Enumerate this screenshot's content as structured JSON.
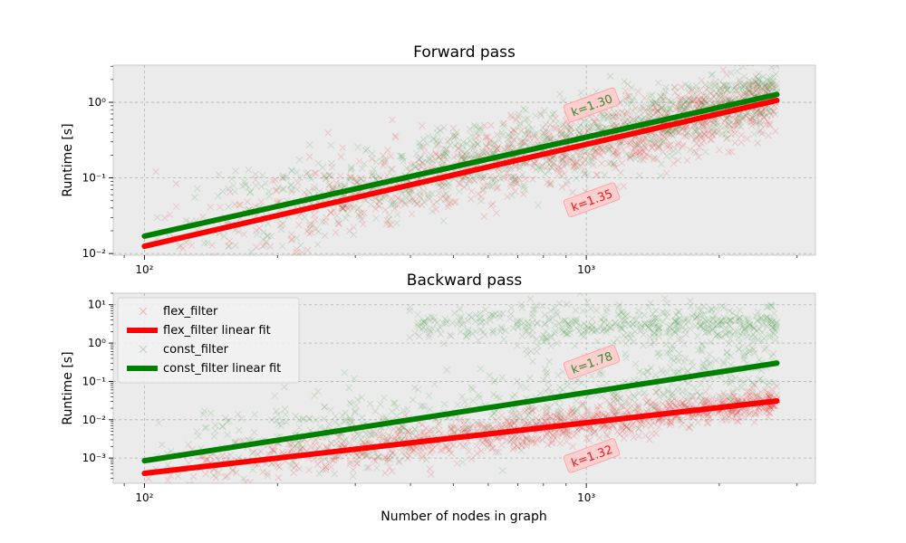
{
  "figure": {
    "xlabel": "Number of nodes in graph"
  },
  "chart_data": [
    {
      "type": "scatter",
      "title": "Forward pass",
      "xlabel": "",
      "ylabel": "Runtime [s]",
      "xscale": "log",
      "yscale": "log",
      "xlim": [
        85,
        3300
      ],
      "ylim": [
        0.0095,
        3.1
      ],
      "xticks": [
        {
          "v": 100,
          "label": "10²"
        },
        {
          "v": 1000,
          "label": "10³"
        }
      ],
      "yticks": [
        {
          "v": 0.01,
          "label": "10⁻²"
        },
        {
          "v": 0.1,
          "label": "10⁻¹"
        },
        {
          "v": 1,
          "label": "10⁰"
        }
      ],
      "grid": true,
      "series": [
        {
          "name": "flex_filter",
          "kind": "scatter",
          "color": "#e41a1c",
          "n": 1100,
          "trend": {
            "x0": 100,
            "y0": 0.0125,
            "x1": 2700,
            "y1": 1.06
          },
          "spread": 0.32
        },
        {
          "name": "flex_filter linear fit",
          "kind": "line",
          "color": "#ff0000",
          "x": [
            100,
            2700
          ],
          "y": [
            0.0125,
            1.06
          ]
        },
        {
          "name": "const_filter",
          "kind": "scatter",
          "color": "#2e8b2e",
          "n": 1100,
          "trend": {
            "x0": 100,
            "y0": 0.017,
            "x1": 2700,
            "y1": 1.27
          },
          "spread": 0.32
        },
        {
          "name": "const_filter linear fit",
          "kind": "line",
          "color": "#008000",
          "x": [
            100,
            2700
          ],
          "y": [
            0.017,
            1.27
          ]
        }
      ],
      "annotations": [
        {
          "text": "k=1.30",
          "x": 1030,
          "y": 0.9,
          "color": "#2e8b2e"
        },
        {
          "text": "k=1.35",
          "x": 1030,
          "y": 0.05,
          "color": "#e41a1c"
        }
      ]
    },
    {
      "type": "scatter",
      "title": "Backward pass",
      "xlabel": "Number of nodes in graph",
      "ylabel": "Runtime [s]",
      "xscale": "log",
      "yscale": "log",
      "xlim": [
        85,
        3300
      ],
      "ylim": [
        0.00022,
        20
      ],
      "xticks": [
        {
          "v": 100,
          "label": "10²"
        },
        {
          "v": 1000,
          "label": "10³"
        }
      ],
      "yticks": [
        {
          "v": 0.001,
          "label": "10⁻³"
        },
        {
          "v": 0.01,
          "label": "10⁻²"
        },
        {
          "v": 0.1,
          "label": "10⁻¹"
        },
        {
          "v": 1,
          "label": "10⁰"
        },
        {
          "v": 10,
          "label": "10¹"
        }
      ],
      "grid": true,
      "legend_loc": "upper left",
      "series": [
        {
          "name": "flex_filter",
          "kind": "scatter",
          "color": "#e41a1c",
          "n": 1100,
          "trend": {
            "x0": 100,
            "y0": 0.0004,
            "x1": 2700,
            "y1": 0.031
          },
          "spread": 0.3
        },
        {
          "name": "flex_filter linear fit",
          "kind": "line",
          "color": "#ff0000",
          "x": [
            100,
            2700
          ],
          "y": [
            0.0004,
            0.031
          ]
        },
        {
          "name": "const_filter",
          "kind": "scatter",
          "color": "#2e8b2e",
          "n": 1100,
          "trend": {
            "x0": 100,
            "y0": 0.00085,
            "x1": 2700,
            "y1": 0.3
          },
          "spread": 1.1
        },
        {
          "name": "const_filter linear fit",
          "kind": "line",
          "color": "#008000",
          "x": [
            100,
            2700
          ],
          "y": [
            0.00085,
            0.3
          ]
        }
      ],
      "annotations": [
        {
          "text": "k=1.78",
          "x": 1030,
          "y": 0.3,
          "color": "#2e8b2e"
        },
        {
          "text": "k=1.32",
          "x": 1030,
          "y": 0.0011,
          "color": "#e41a1c"
        }
      ]
    }
  ]
}
